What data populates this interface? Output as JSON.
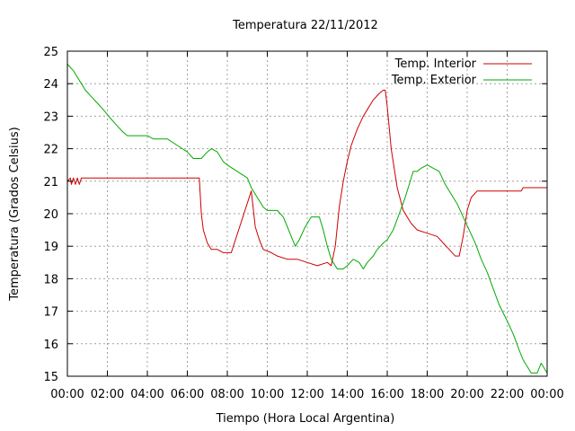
{
  "chart_data": {
    "type": "line",
    "title": "Temperatura 22/11/2012",
    "xlabel": "Tiempo (Hora Local Argentina)",
    "ylabel": "Temperatura (Grados Celsius)",
    "xlim": [
      0,
      24
    ],
    "ylim": [
      15,
      25
    ],
    "xticks": [
      {
        "v": 0,
        "label": "00:00"
      },
      {
        "v": 2,
        "label": "02:00"
      },
      {
        "v": 4,
        "label": "04:00"
      },
      {
        "v": 6,
        "label": "06:00"
      },
      {
        "v": 8,
        "label": "08:00"
      },
      {
        "v": 10,
        "label": "10:00"
      },
      {
        "v": 12,
        "label": "12:00"
      },
      {
        "v": 14,
        "label": "14:00"
      },
      {
        "v": 16,
        "label": "16:00"
      },
      {
        "v": 18,
        "label": "18:00"
      },
      {
        "v": 20,
        "label": "20:00"
      },
      {
        "v": 22,
        "label": "22:00"
      },
      {
        "v": 24,
        "label": "00:00"
      }
    ],
    "yticks": [
      {
        "v": 15,
        "label": "15"
      },
      {
        "v": 16,
        "label": "16"
      },
      {
        "v": 17,
        "label": "17"
      },
      {
        "v": 18,
        "label": "18"
      },
      {
        "v": 19,
        "label": "19"
      },
      {
        "v": 20,
        "label": "20"
      },
      {
        "v": 21,
        "label": "21"
      },
      {
        "v": 22,
        "label": "22"
      },
      {
        "v": 23,
        "label": "23"
      },
      {
        "v": 24,
        "label": "24"
      },
      {
        "v": 25,
        "label": "25"
      }
    ],
    "grid": true,
    "legend_position": "top-right",
    "series": [
      {
        "name": "Temp. Interior",
        "color": "#cc0000",
        "points": [
          [
            0,
            21.0
          ],
          [
            0.15,
            21.1
          ],
          [
            0.2,
            20.9
          ],
          [
            0.3,
            21.1
          ],
          [
            0.4,
            20.9
          ],
          [
            0.5,
            21.1
          ],
          [
            0.6,
            20.9
          ],
          [
            0.7,
            21.1
          ],
          [
            2,
            21.1
          ],
          [
            4,
            21.1
          ],
          [
            6.6,
            21.1
          ],
          [
            6.7,
            20.0
          ],
          [
            6.8,
            19.5
          ],
          [
            7.0,
            19.1
          ],
          [
            7.2,
            18.9
          ],
          [
            7.5,
            18.9
          ],
          [
            7.8,
            18.8
          ],
          [
            8.2,
            18.8
          ],
          [
            9.2,
            20.7
          ],
          [
            9.4,
            19.6
          ],
          [
            9.6,
            19.2
          ],
          [
            9.8,
            18.9
          ],
          [
            10.2,
            18.8
          ],
          [
            10.5,
            18.7
          ],
          [
            11.0,
            18.6
          ],
          [
            11.5,
            18.6
          ],
          [
            12.0,
            18.5
          ],
          [
            12.5,
            18.4
          ],
          [
            13.0,
            18.5
          ],
          [
            13.2,
            18.4
          ],
          [
            13.4,
            19.0
          ],
          [
            13.6,
            20.2
          ],
          [
            13.8,
            21.0
          ],
          [
            14.0,
            21.6
          ],
          [
            14.2,
            22.1
          ],
          [
            14.5,
            22.6
          ],
          [
            14.8,
            23.0
          ],
          [
            15.0,
            23.2
          ],
          [
            15.3,
            23.5
          ],
          [
            15.6,
            23.7
          ],
          [
            15.8,
            23.8
          ],
          [
            15.9,
            23.8
          ],
          [
            16.0,
            23.3
          ],
          [
            16.2,
            22.0
          ],
          [
            16.5,
            20.8
          ],
          [
            16.8,
            20.1
          ],
          [
            17.2,
            19.7
          ],
          [
            17.5,
            19.5
          ],
          [
            18.0,
            19.4
          ],
          [
            18.5,
            19.3
          ],
          [
            18.8,
            19.1
          ],
          [
            19.1,
            18.9
          ],
          [
            19.4,
            18.7
          ],
          [
            19.6,
            18.7
          ],
          [
            19.8,
            19.3
          ],
          [
            20.0,
            20.1
          ],
          [
            20.2,
            20.5
          ],
          [
            20.5,
            20.7
          ],
          [
            21.0,
            20.7
          ],
          [
            22.0,
            20.7
          ],
          [
            22.7,
            20.7
          ],
          [
            22.8,
            20.8
          ],
          [
            24.0,
            20.8
          ]
        ]
      },
      {
        "name": "Temp. Exterior",
        "color": "#00aa00",
        "points": [
          [
            0,
            24.6
          ],
          [
            0.3,
            24.4
          ],
          [
            0.5,
            24.2
          ],
          [
            0.7,
            24.0
          ],
          [
            0.9,
            23.8
          ],
          [
            1.2,
            23.6
          ],
          [
            1.5,
            23.4
          ],
          [
            1.8,
            23.2
          ],
          [
            2.2,
            22.9
          ],
          [
            2.5,
            22.7
          ],
          [
            2.8,
            22.5
          ],
          [
            3.0,
            22.4
          ],
          [
            4.0,
            22.4
          ],
          [
            4.3,
            22.3
          ],
          [
            5.0,
            22.3
          ],
          [
            5.5,
            22.1
          ],
          [
            6.0,
            21.9
          ],
          [
            6.3,
            21.7
          ],
          [
            6.7,
            21.7
          ],
          [
            7.0,
            21.9
          ],
          [
            7.2,
            22.0
          ],
          [
            7.5,
            21.9
          ],
          [
            7.8,
            21.6
          ],
          [
            8.0,
            21.5
          ],
          [
            8.5,
            21.3
          ],
          [
            9.0,
            21.1
          ],
          [
            9.2,
            20.8
          ],
          [
            9.4,
            20.6
          ],
          [
            9.6,
            20.4
          ],
          [
            9.8,
            20.2
          ],
          [
            10.0,
            20.1
          ],
          [
            10.5,
            20.1
          ],
          [
            10.8,
            19.9
          ],
          [
            11.0,
            19.6
          ],
          [
            11.2,
            19.3
          ],
          [
            11.4,
            19.0
          ],
          [
            11.6,
            19.2
          ],
          [
            11.9,
            19.6
          ],
          [
            12.2,
            19.9
          ],
          [
            12.6,
            19.9
          ],
          [
            12.8,
            19.5
          ],
          [
            13.0,
            19.0
          ],
          [
            13.2,
            18.6
          ],
          [
            13.5,
            18.3
          ],
          [
            13.8,
            18.3
          ],
          [
            14.0,
            18.4
          ],
          [
            14.3,
            18.6
          ],
          [
            14.6,
            18.5
          ],
          [
            14.8,
            18.3
          ],
          [
            15.0,
            18.5
          ],
          [
            15.3,
            18.7
          ],
          [
            15.5,
            18.9
          ],
          [
            15.8,
            19.1
          ],
          [
            16.0,
            19.2
          ],
          [
            16.3,
            19.5
          ],
          [
            16.6,
            20.0
          ],
          [
            16.9,
            20.5
          ],
          [
            17.1,
            20.9
          ],
          [
            17.3,
            21.3
          ],
          [
            17.5,
            21.3
          ],
          [
            17.7,
            21.4
          ],
          [
            18.0,
            21.5
          ],
          [
            18.3,
            21.4
          ],
          [
            18.6,
            21.3
          ],
          [
            18.9,
            20.9
          ],
          [
            19.2,
            20.6
          ],
          [
            19.5,
            20.3
          ],
          [
            19.8,
            19.9
          ],
          [
            20.1,
            19.5
          ],
          [
            20.4,
            19.1
          ],
          [
            20.7,
            18.6
          ],
          [
            21.0,
            18.2
          ],
          [
            21.3,
            17.7
          ],
          [
            21.6,
            17.2
          ],
          [
            22.0,
            16.7
          ],
          [
            22.3,
            16.3
          ],
          [
            22.6,
            15.8
          ],
          [
            22.8,
            15.5
          ],
          [
            23.0,
            15.3
          ],
          [
            23.2,
            15.1
          ],
          [
            23.5,
            15.1
          ],
          [
            23.7,
            15.4
          ],
          [
            24.0,
            15.1
          ]
        ]
      }
    ]
  }
}
